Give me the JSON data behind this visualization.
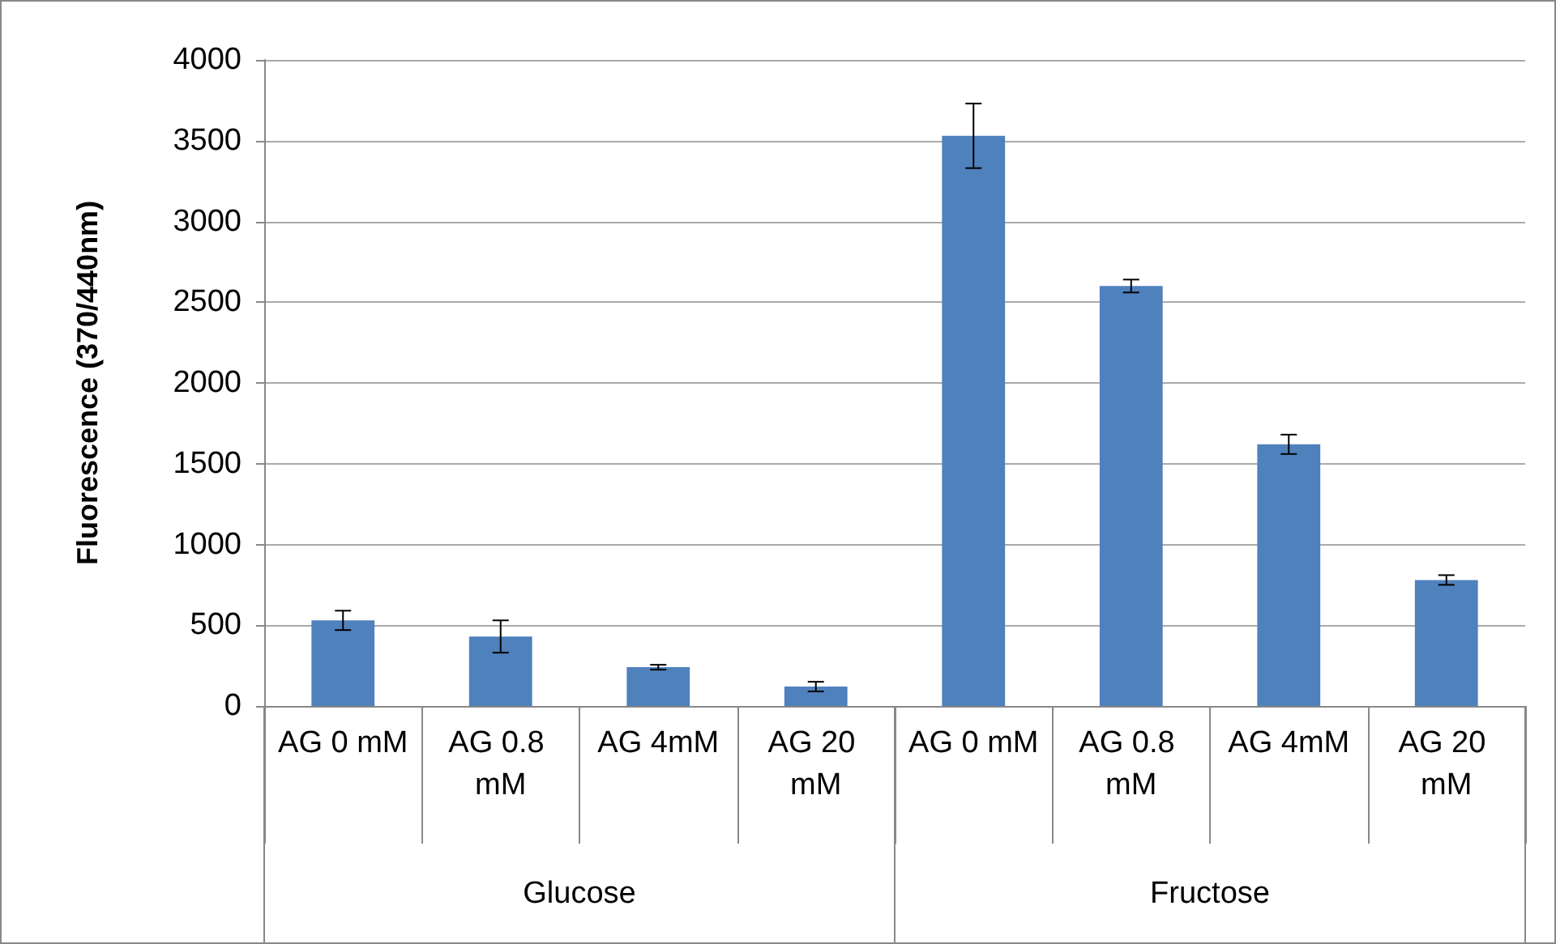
{
  "chart_data": {
    "type": "bar",
    "ylabel": "Fluorescence (370/440nm)",
    "categories": [
      "AG 0 mM",
      "AG 0.8 mM",
      "AG 4mM",
      "AG 20 mM",
      "AG 0 mM",
      "AG 0.8 mM",
      "AG 4mM",
      "AG 20 mM"
    ],
    "values": [
      530,
      430,
      240,
      120,
      3530,
      2600,
      1620,
      780
    ],
    "errors": [
      60,
      100,
      15,
      30,
      200,
      40,
      60,
      30
    ],
    "color": "#4f81bd",
    "ylim": [
      0,
      4000
    ],
    "yticks": [
      0,
      500,
      1000,
      1500,
      2000,
      2500,
      3000,
      3500,
      4000
    ],
    "grid": "y",
    "annotations": [
      "Glucose",
      "Fructose"
    ]
  }
}
